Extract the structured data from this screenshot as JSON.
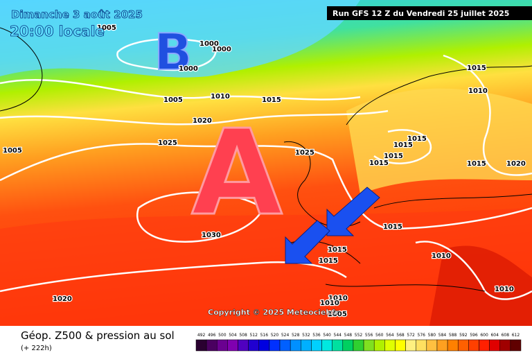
{
  "header": {
    "date": "Dimanche 3 août 2025",
    "time": "20:00 locale",
    "run": "Run GFS 12 Z du Vendredi 25 juillet 2025"
  },
  "centers": {
    "high": "A",
    "low": "B"
  },
  "isobar_labels": [
    "1005",
    "1000",
    "1000",
    "1000",
    "1005",
    "1010",
    "1015",
    "1020",
    "1025",
    "1005",
    "1025",
    "1015",
    "1015",
    "1015",
    "1015",
    "1015",
    "1010",
    "1015",
    "1020",
    "1015",
    "1015",
    "1015",
    "1030",
    "1010",
    "1010",
    "1020",
    "1010",
    "1010",
    "1005"
  ],
  "copyright": "Copyright © 2025 Meteociel.fr",
  "footer": {
    "title": "Géop. Z500 & pression au sol",
    "lead": "(+ 222h)"
  },
  "scale": {
    "labels": [
      "492",
      "496",
      "500",
      "504",
      "508",
      "512",
      "516",
      "520",
      "524",
      "528",
      "532",
      "536",
      "540",
      "544",
      "548",
      "552",
      "556",
      "560",
      "564",
      "568",
      "572",
      "576",
      "580",
      "584",
      "588",
      "592",
      "596",
      "600",
      "604",
      "608",
      "612"
    ],
    "colors": [
      "#2a0030",
      "#4a0060",
      "#6a0090",
      "#8000b0",
      "#5000c0",
      "#2000d0",
      "#0000e0",
      "#0030ff",
      "#0060ff",
      "#0090ff",
      "#00b0ff",
      "#00d0ff",
      "#00e8e0",
      "#00e0a0",
      "#00d060",
      "#30d030",
      "#80e020",
      "#b0f000",
      "#e0ff00",
      "#ffff00",
      "#fff080",
      "#ffe060",
      "#ffc040",
      "#ffa020",
      "#ff8000",
      "#ff6000",
      "#ff4000",
      "#ff2000",
      "#e00000",
      "#a00000",
      "#600000"
    ]
  }
}
